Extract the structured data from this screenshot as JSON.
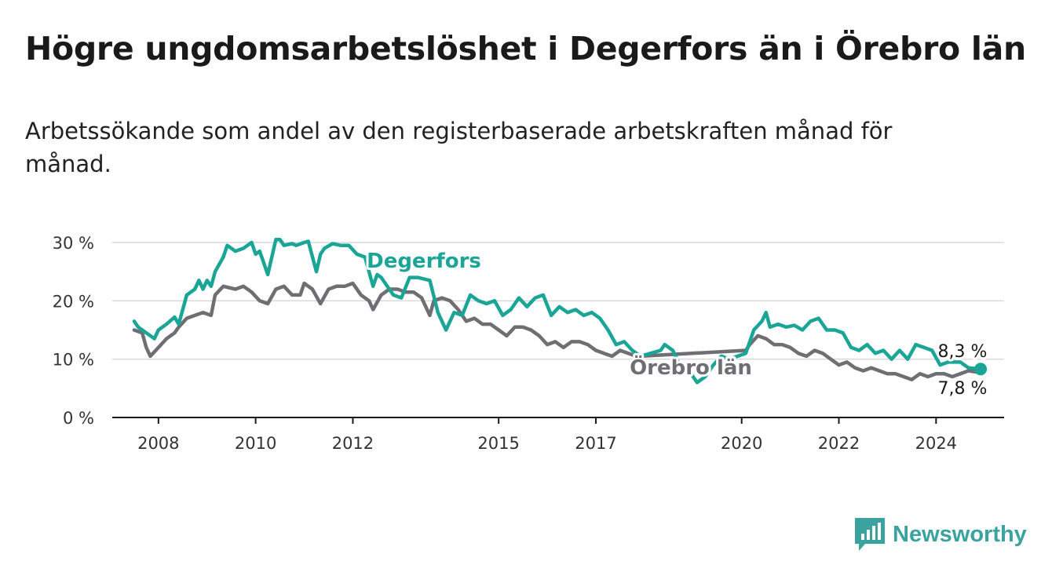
{
  "chart_data": {
    "type": "line",
    "title": "Högre ungdomsarbetslöshet i Degerfors än i Örebro län",
    "subtitle": "Arbetssökande som andel av den registerbaserade arbetskraften månad för månad.",
    "xlabel": "",
    "ylabel": "",
    "x_ticks": [
      "2008",
      "2010",
      "2012",
      "2015",
      "2017",
      "2020",
      "2022",
      "2024"
    ],
    "y_ticks": [
      "0 %",
      "10 %",
      "20 %",
      "30 %"
    ],
    "ylim": [
      0,
      30
    ],
    "grid": true,
    "legend": "inline labels",
    "series": [
      {
        "name": "Degerfors",
        "color": "#1aa597",
        "end_label": "8,3 %",
        "points": [
          [
            "2008-01",
            16.5
          ],
          [
            "2008-02",
            15.5
          ],
          [
            "2008-04",
            14.5
          ],
          [
            "2008-06",
            13.5
          ],
          [
            "2008-07",
            15
          ],
          [
            "2008-09",
            16
          ],
          [
            "2008-11",
            17.2
          ],
          [
            "2008-12",
            16
          ],
          [
            "2009-02",
            21
          ],
          [
            "2009-04",
            22
          ],
          [
            "2009-05",
            23.5
          ],
          [
            "2009-06",
            22
          ],
          [
            "2009-07",
            23.5
          ],
          [
            "2009-08",
            22.5
          ],
          [
            "2009-09",
            25
          ],
          [
            "2009-11",
            27.5
          ],
          [
            "2009-12",
            29.5
          ],
          [
            "2010-02",
            28.5
          ],
          [
            "2010-04",
            29
          ],
          [
            "2010-06",
            30
          ],
          [
            "2010-07",
            28
          ],
          [
            "2010-08",
            28.5
          ],
          [
            "2010-10",
            24.5
          ],
          [
            "2010-12",
            30.5
          ],
          [
            "2011-01",
            30.5
          ],
          [
            "2011-02",
            29.5
          ],
          [
            "2011-04",
            29.8
          ],
          [
            "2011-05",
            29.5
          ],
          [
            "2011-07",
            30
          ],
          [
            "2011-08",
            30.2
          ],
          [
            "2011-10",
            25
          ],
          [
            "2011-11",
            28
          ],
          [
            "2011-12",
            29
          ],
          [
            "2012-02",
            29.8
          ],
          [
            "2012-04",
            29.5
          ],
          [
            "2012-06",
            29.5
          ],
          [
            "2012-08",
            28
          ],
          [
            "2012-10",
            27.5
          ],
          [
            "2012-12",
            22.5
          ],
          [
            "2013-01",
            24.5
          ],
          [
            "2013-02",
            24
          ],
          [
            "2013-05",
            21
          ],
          [
            "2013-07",
            20.5
          ],
          [
            "2013-09",
            24
          ],
          [
            "2013-11",
            24
          ],
          [
            "2014-02",
            23.5
          ],
          [
            "2014-04",
            18
          ],
          [
            "2014-06",
            15
          ],
          [
            "2014-08",
            18
          ],
          [
            "2014-10",
            17.5
          ],
          [
            "2014-12",
            21
          ],
          [
            "2015-02",
            20
          ],
          [
            "2015-04",
            19.5
          ],
          [
            "2015-06",
            20
          ],
          [
            "2015-08",
            17.5
          ],
          [
            "2015-10",
            18.5
          ],
          [
            "2015-12",
            20.5
          ],
          [
            "2016-02",
            19
          ],
          [
            "2016-04",
            20.5
          ],
          [
            "2016-06",
            21
          ],
          [
            "2016-08",
            17.5
          ],
          [
            "2016-10",
            19
          ],
          [
            "2016-12",
            18
          ],
          [
            "2017-02",
            18.5
          ],
          [
            "2017-04",
            17.5
          ],
          [
            "2017-06",
            18
          ],
          [
            "2017-08",
            17
          ],
          [
            "2017-10",
            15
          ],
          [
            "2017-12",
            12.5
          ],
          [
            "2018-02",
            13
          ],
          [
            "2018-04",
            11.5
          ],
          [
            "2018-06",
            10.5
          ],
          [
            "2018-11",
            11.5
          ],
          [
            "2018-12",
            12.5
          ],
          [
            "2019-02",
            11.5
          ],
          [
            "2019-04",
            8.5
          ],
          [
            "2019-06",
            8
          ],
          [
            "2019-08",
            6
          ],
          [
            "2019-10",
            7
          ],
          [
            "2019-12",
            9
          ],
          [
            "2020-02",
            10.5
          ],
          [
            "2020-04",
            10
          ],
          [
            "2020-06",
            10.5
          ],
          [
            "2020-08",
            11
          ],
          [
            "2020-10",
            15
          ],
          [
            "2020-12",
            16.5
          ],
          [
            "2021-01",
            18
          ],
          [
            "2021-02",
            15.5
          ],
          [
            "2021-04",
            16
          ],
          [
            "2021-06",
            15.5
          ],
          [
            "2021-08",
            15.8
          ],
          [
            "2021-10",
            15
          ],
          [
            "2021-12",
            16.5
          ],
          [
            "2022-02",
            17
          ],
          [
            "2022-04",
            15
          ],
          [
            "2022-06",
            15
          ],
          [
            "2022-08",
            14.5
          ],
          [
            "2022-10",
            12
          ],
          [
            "2022-12",
            11.5
          ],
          [
            "2023-02",
            12.5
          ],
          [
            "2023-04",
            11
          ],
          [
            "2023-06",
            11.5
          ],
          [
            "2023-08",
            10
          ],
          [
            "2023-10",
            11.5
          ],
          [
            "2023-12",
            10
          ],
          [
            "2024-02",
            12.5
          ],
          [
            "2024-04",
            12
          ],
          [
            "2024-06",
            11.5
          ],
          [
            "2024-08",
            9
          ],
          [
            "2024-10",
            9.5
          ],
          [
            "2025-01",
            9.5
          ],
          [
            "2025-03",
            8.5
          ],
          [
            "2025-06",
            8.3
          ]
        ]
      },
      {
        "name": "Örebro län",
        "color": "#6e6e73",
        "end_label": "7,8 %",
        "points": [
          [
            "2008-01",
            15
          ],
          [
            "2008-03",
            14.5
          ],
          [
            "2008-04",
            12
          ],
          [
            "2008-05",
            10.5
          ],
          [
            "2008-07",
            12
          ],
          [
            "2008-09",
            13.5
          ],
          [
            "2008-11",
            14.5
          ],
          [
            "2008-12",
            15.5
          ],
          [
            "2009-02",
            17
          ],
          [
            "2009-04",
            17.5
          ],
          [
            "2009-06",
            18
          ],
          [
            "2009-08",
            17.5
          ],
          [
            "2009-09",
            21
          ],
          [
            "2009-11",
            22.5
          ],
          [
            "2010-02",
            22
          ],
          [
            "2010-04",
            22.5
          ],
          [
            "2010-06",
            21.5
          ],
          [
            "2010-08",
            20
          ],
          [
            "2010-10",
            19.5
          ],
          [
            "2010-12",
            22
          ],
          [
            "2011-02",
            22.5
          ],
          [
            "2011-04",
            21
          ],
          [
            "2011-06",
            21
          ],
          [
            "2011-07",
            23
          ],
          [
            "2011-09",
            22
          ],
          [
            "2011-11",
            19.5
          ],
          [
            "2012-01",
            22
          ],
          [
            "2012-03",
            22.5
          ],
          [
            "2012-05",
            22.5
          ],
          [
            "2012-07",
            23
          ],
          [
            "2012-09",
            21
          ],
          [
            "2012-11",
            20
          ],
          [
            "2012-12",
            18.5
          ],
          [
            "2013-02",
            21
          ],
          [
            "2013-04",
            22
          ],
          [
            "2013-06",
            22
          ],
          [
            "2013-08",
            21.5
          ],
          [
            "2013-10",
            21.5
          ],
          [
            "2013-12",
            20.5
          ],
          [
            "2014-02",
            17.5
          ],
          [
            "2014-03",
            20
          ],
          [
            "2014-05",
            20.5
          ],
          [
            "2014-07",
            20
          ],
          [
            "2014-09",
            18.5
          ],
          [
            "2014-11",
            16.5
          ],
          [
            "2015-01",
            17
          ],
          [
            "2015-03",
            16
          ],
          [
            "2015-05",
            16
          ],
          [
            "2015-07",
            15
          ],
          [
            "2015-09",
            14
          ],
          [
            "2015-11",
            15.5
          ],
          [
            "2016-01",
            15.5
          ],
          [
            "2016-03",
            15
          ],
          [
            "2016-05",
            14
          ],
          [
            "2016-07",
            12.5
          ],
          [
            "2016-09",
            13
          ],
          [
            "2016-11",
            12
          ],
          [
            "2017-01",
            13
          ],
          [
            "2017-03",
            13
          ],
          [
            "2017-05",
            12.5
          ],
          [
            "2017-07",
            11.5
          ],
          [
            "2017-09",
            11
          ],
          [
            "2017-11",
            10.5
          ],
          [
            "2018-01",
            11.5
          ],
          [
            "2018-03",
            11
          ],
          [
            "2018-05",
            10.5
          ],
          [
            "2018-06",
            10.5
          ],
          [
            "2020-08",
            11.5
          ],
          [
            "2020-09",
            12.5
          ],
          [
            "2020-11",
            14
          ],
          [
            "2021-01",
            13.5
          ],
          [
            "2021-03",
            12.5
          ],
          [
            "2021-05",
            12.5
          ],
          [
            "2021-07",
            12
          ],
          [
            "2021-09",
            11
          ],
          [
            "2021-11",
            10.5
          ],
          [
            "2022-01",
            11.5
          ],
          [
            "2022-03",
            11
          ],
          [
            "2022-05",
            10
          ],
          [
            "2022-07",
            9
          ],
          [
            "2022-09",
            9.5
          ],
          [
            "2022-11",
            8.5
          ],
          [
            "2023-01",
            8
          ],
          [
            "2023-03",
            8.5
          ],
          [
            "2023-05",
            8
          ],
          [
            "2023-07",
            7.5
          ],
          [
            "2023-09",
            7.5
          ],
          [
            "2023-11",
            7
          ],
          [
            "2024-01",
            6.5
          ],
          [
            "2024-03",
            7.5
          ],
          [
            "2024-05",
            7
          ],
          [
            "2024-07",
            7.5
          ],
          [
            "2024-09",
            7.5
          ],
          [
            "2024-11",
            7
          ],
          [
            "2025-01",
            7.5
          ],
          [
            "2025-03",
            8
          ],
          [
            "2025-05",
            7.8
          ],
          [
            "2025-06",
            7.8
          ]
        ]
      }
    ]
  },
  "brand": {
    "name": "Newsworthy",
    "logo_icon": "bar-chart-icon",
    "color": "#3aa3a0"
  }
}
